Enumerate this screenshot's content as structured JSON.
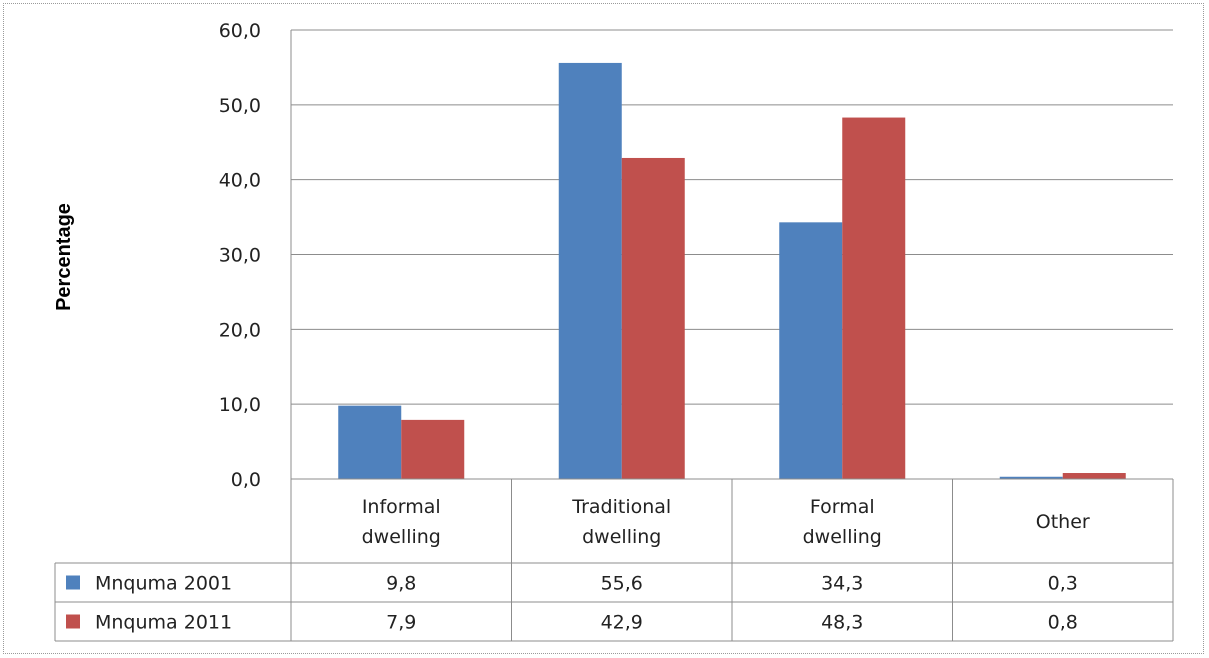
{
  "chart_data": {
    "type": "bar",
    "title": "",
    "xlabel": "",
    "ylabel": "Percentage",
    "ylim": [
      0,
      60
    ],
    "yticks": [
      "0,0",
      "10,0",
      "20,0",
      "30,0",
      "40,0",
      "50,0",
      "60,0"
    ],
    "grid": true,
    "legend": "data-table",
    "categories": [
      [
        "Informal",
        "dwelling"
      ],
      [
        "Traditional",
        "dwelling"
      ],
      [
        "Formal",
        "dwelling"
      ],
      [
        "Other"
      ]
    ],
    "series": [
      {
        "name": "Mnquma 2001",
        "color": "#4f81bd",
        "values": [
          9.8,
          55.6,
          34.3,
          0.3
        ],
        "labels": [
          "9,8",
          "55,6",
          "34,3",
          "0,3"
        ]
      },
      {
        "name": "Mnquma 2011",
        "color": "#c0504d",
        "values": [
          7.9,
          42.9,
          48.3,
          0.8
        ],
        "labels": [
          "7,9",
          "42,9",
          "48,3",
          "0,8"
        ]
      }
    ]
  }
}
